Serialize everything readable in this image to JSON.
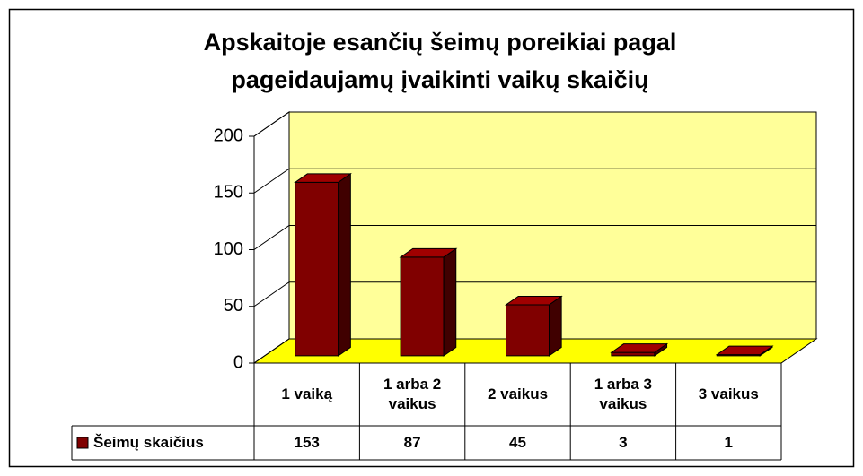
{
  "chart_data": {
    "type": "bar3d",
    "title": "Apskaitoje esančių šeimų poreikiai pagal pageidaujamų įvaikinti vaikų skaičių",
    "categories": [
      "1 vaiką",
      "1 arba 2 vaikus",
      "2 vaikus",
      "1 arba 3 vaikus",
      "3 vaikus"
    ],
    "series": [
      {
        "name": "Šeimų skaičius",
        "color": "#800000",
        "values": [
          153,
          87,
          45,
          3,
          1
        ]
      }
    ],
    "ylim": [
      0,
      200
    ],
    "yticks": [
      0,
      50,
      100,
      150,
      200
    ],
    "grid": true,
    "data_table": true
  }
}
